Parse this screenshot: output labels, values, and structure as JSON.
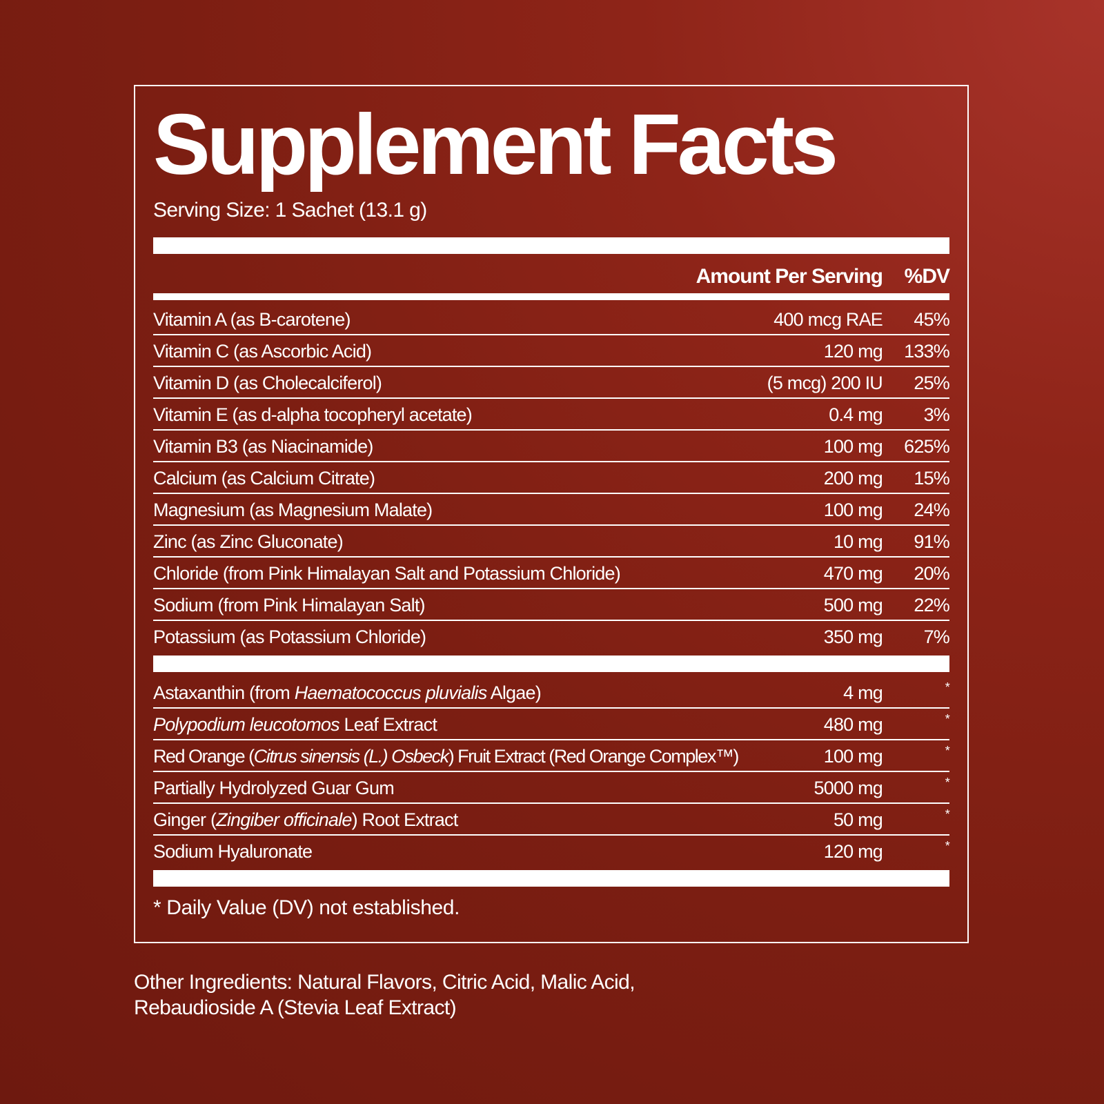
{
  "title": "Supplement Facts",
  "serving_size": "Serving Size: 1 Sachet (13.1 g)",
  "header": {
    "amount": "Amount Per Serving",
    "dv": "%DV"
  },
  "nutrients": [
    {
      "name": "Vitamin A (as B-carotene)",
      "amount": "400 mcg RAE",
      "dv": "45%"
    },
    {
      "name": "Vitamin C (as Ascorbic Acid)",
      "amount": "120 mg",
      "dv": "133%"
    },
    {
      "name": "Vitamin D (as Cholecalciferol)",
      "amount": "(5 mcg) 200 IU",
      "dv": "25%"
    },
    {
      "name": "Vitamin E (as d-alpha tocopheryl acetate)",
      "amount": "0.4 mg",
      "dv": "3%"
    },
    {
      "name": "Vitamin B3 (as Niacinamide)",
      "amount": "100 mg",
      "dv": "625%"
    },
    {
      "name": "Calcium (as Calcium Citrate)",
      "amount": "200 mg",
      "dv": "15%"
    },
    {
      "name": "Magnesium (as Magnesium Malate)",
      "amount": "100 mg",
      "dv": "24%"
    },
    {
      "name": "Zinc (as Zinc Gluconate)",
      "amount": "10 mg",
      "dv": "91%"
    },
    {
      "name": "Chloride (from Pink Himalayan Salt and Potassium Chloride)",
      "amount": "470 mg",
      "dv": "20%"
    },
    {
      "name": "Sodium (from Pink Himalayan Salt)",
      "amount": "500 mg",
      "dv": "22%"
    },
    {
      "name": "Potassium (as Potassium Chloride)",
      "amount": "350 mg",
      "dv": "7%"
    }
  ],
  "other_actives": [
    {
      "name_parts": [
        {
          "t": "Astaxanthin (from ",
          "i": false
        },
        {
          "t": "Haematococcus pluvialis",
          "i": true
        },
        {
          "t": " Algae)",
          "i": false
        }
      ],
      "amount": "4 mg",
      "dv": "*"
    },
    {
      "name_parts": [
        {
          "t": "Polypodium leucotomos",
          "i": true
        },
        {
          "t": " Leaf Extract",
          "i": false
        }
      ],
      "amount": "480 mg",
      "dv": "*"
    },
    {
      "name_parts": [
        {
          "t": "Red Orange (",
          "i": false
        },
        {
          "t": "Citrus sinensis (L.) Osbeck",
          "i": true
        },
        {
          "t": ") Fruit Extract (Red Orange Complex™)",
          "i": false
        }
      ],
      "amount": "100 mg",
      "dv": "*"
    },
    {
      "name_parts": [
        {
          "t": "Partially Hydrolyzed Guar Gum",
          "i": false
        }
      ],
      "amount": "5000 mg",
      "dv": "*"
    },
    {
      "name_parts": [
        {
          "t": "Ginger (",
          "i": false
        },
        {
          "t": "Zingiber officinale",
          "i": true
        },
        {
          "t": ") Root Extract",
          "i": false
        }
      ],
      "amount": "50 mg",
      "dv": "*"
    },
    {
      "name_parts": [
        {
          "t": "Sodium Hyaluronate",
          "i": false
        }
      ],
      "amount": "120 mg",
      "dv": "*"
    }
  ],
  "footnote": "* Daily Value (DV) not established.",
  "other_ingredients": {
    "line1": "Other Ingredients: Natural Flavors, Citric Acid, Malic Acid,",
    "line2": "Rebaudioside A (Stevia Leaf Extract)"
  },
  "colors": {
    "background": "#7c1e12",
    "background_highlight": "#a8332a",
    "text": "#ffffff"
  }
}
